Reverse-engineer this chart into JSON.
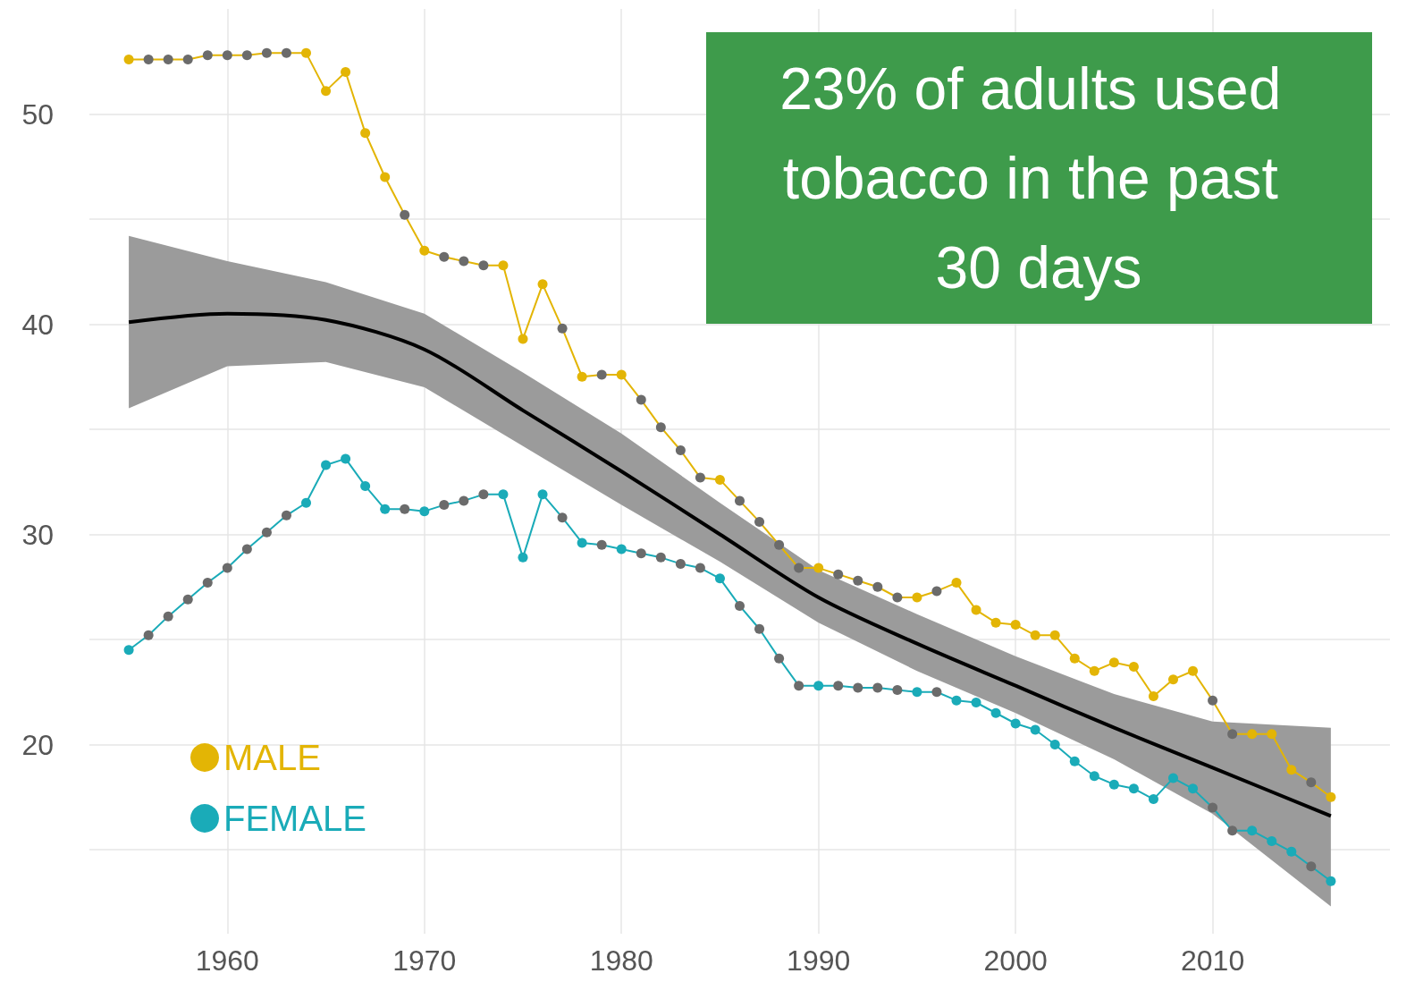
{
  "chart_data": {
    "type": "line",
    "annotations": [
      "23% of adults used tobacco in the past 30 days"
    ],
    "x": [
      1955,
      1956,
      1957,
      1958,
      1959,
      1960,
      1961,
      1962,
      1963,
      1964,
      1965,
      1966,
      1967,
      1968,
      1969,
      1970,
      1971,
      1972,
      1973,
      1974,
      1975,
      1976,
      1977,
      1978,
      1979,
      1980,
      1981,
      1982,
      1983,
      1984,
      1985,
      1986,
      1987,
      1988,
      1989,
      1990,
      1991,
      1992,
      1993,
      1994,
      1995,
      1996,
      1997,
      1998,
      1999,
      2000,
      2001,
      2002,
      2003,
      2004,
      2005,
      2006,
      2007,
      2008,
      2009,
      2010,
      2011,
      2012,
      2013,
      2014,
      2015,
      2016
    ],
    "series": [
      {
        "name": "MALE",
        "color": "#e3b505",
        "values": [
          52.6,
          52.6,
          52.6,
          52.6,
          52.8,
          52.8,
          52.8,
          52.9,
          52.9,
          52.9,
          51.1,
          52.0,
          49.1,
          47.0,
          45.2,
          43.5,
          43.2,
          43.0,
          42.8,
          42.8,
          39.3,
          41.9,
          39.8,
          37.5,
          37.6,
          37.6,
          36.4,
          35.1,
          34.0,
          32.7,
          32.6,
          31.6,
          30.6,
          29.5,
          28.4,
          28.4,
          28.1,
          27.8,
          27.5,
          27.0,
          27.0,
          27.3,
          27.7,
          26.4,
          25.8,
          25.7,
          25.2,
          25.2,
          24.1,
          23.5,
          23.9,
          23.7,
          22.3,
          23.1,
          23.5,
          22.1,
          20.5,
          20.5,
          20.5,
          18.8,
          18.2,
          17.5
        ],
        "colors": [
          "#e3b505",
          "#6b6b6b",
          "#6b6b6b",
          "#6b6b6b",
          "#6b6b6b",
          "#6b6b6b",
          "#6b6b6b",
          "#6b6b6b",
          "#6b6b6b",
          "#e3b505",
          "#e3b505",
          "#e3b505",
          "#e3b505",
          "#e3b505",
          "#6b6b6b",
          "#e3b505",
          "#6b6b6b",
          "#6b6b6b",
          "#6b6b6b",
          "#e3b505",
          "#e3b505",
          "#e3b505",
          "#6b6b6b",
          "#e3b505",
          "#6b6b6b",
          "#e3b505",
          "#6b6b6b",
          "#6b6b6b",
          "#6b6b6b",
          "#6b6b6b",
          "#e3b505",
          "#6b6b6b",
          "#6b6b6b",
          "#6b6b6b",
          "#6b6b6b",
          "#e3b505",
          "#6b6b6b",
          "#6b6b6b",
          "#6b6b6b",
          "#6b6b6b",
          "#e3b505",
          "#6b6b6b",
          "#e3b505",
          "#e3b505",
          "#e3b505",
          "#e3b505",
          "#e3b505",
          "#e3b505",
          "#e3b505",
          "#e3b505",
          "#e3b505",
          "#e3b505",
          "#e3b505",
          "#e3b505",
          "#e3b505",
          "#6b6b6b",
          "#6b6b6b",
          "#e3b505",
          "#e3b505",
          "#e3b505",
          "#6b6b6b",
          "#e3b505"
        ]
      },
      {
        "name": "FEMALE",
        "color": "#1aabb8",
        "values": [
          24.5,
          25.2,
          26.1,
          26.9,
          27.7,
          28.4,
          29.3,
          30.1,
          30.9,
          31.5,
          33.3,
          33.6,
          32.3,
          31.2,
          31.2,
          31.1,
          31.4,
          31.6,
          31.9,
          31.9,
          28.9,
          31.9,
          30.8,
          29.6,
          29.5,
          29.3,
          29.1,
          28.9,
          28.6,
          28.4,
          27.9,
          26.6,
          25.5,
          24.1,
          22.8,
          22.8,
          22.8,
          22.7,
          22.7,
          22.6,
          22.5,
          22.5,
          22.1,
          22.0,
          21.5,
          21.0,
          20.7,
          20.0,
          19.2,
          18.5,
          18.1,
          17.9,
          17.4,
          18.4,
          17.9,
          17.0,
          15.9,
          15.9,
          15.4,
          14.9,
          14.2,
          13.5
        ],
        "colors": [
          "#1aabb8",
          "#6b6b6b",
          "#6b6b6b",
          "#6b6b6b",
          "#6b6b6b",
          "#6b6b6b",
          "#6b6b6b",
          "#6b6b6b",
          "#6b6b6b",
          "#1aabb8",
          "#1aabb8",
          "#1aabb8",
          "#1aabb8",
          "#1aabb8",
          "#6b6b6b",
          "#1aabb8",
          "#6b6b6b",
          "#6b6b6b",
          "#6b6b6b",
          "#1aabb8",
          "#1aabb8",
          "#1aabb8",
          "#6b6b6b",
          "#1aabb8",
          "#6b6b6b",
          "#1aabb8",
          "#6b6b6b",
          "#6b6b6b",
          "#6b6b6b",
          "#6b6b6b",
          "#1aabb8",
          "#6b6b6b",
          "#6b6b6b",
          "#6b6b6b",
          "#6b6b6b",
          "#1aabb8",
          "#6b6b6b",
          "#6b6b6b",
          "#6b6b6b",
          "#6b6b6b",
          "#1aabb8",
          "#6b6b6b",
          "#1aabb8",
          "#1aabb8",
          "#1aabb8",
          "#1aabb8",
          "#1aabb8",
          "#1aabb8",
          "#1aabb8",
          "#1aabb8",
          "#1aabb8",
          "#1aabb8",
          "#1aabb8",
          "#1aabb8",
          "#1aabb8",
          "#6b6b6b",
          "#6b6b6b",
          "#1aabb8",
          "#1aabb8",
          "#1aabb8",
          "#6b6b6b",
          "#1aabb8"
        ]
      },
      {
        "type": "line",
        "color": "#000000",
        "marker": "none",
        "x": [
          1955,
          1960,
          1965,
          1970,
          1975,
          1980,
          1985,
          1990,
          1995,
          2000,
          2005,
          2010,
          2016
        ],
        "values": [
          40.1,
          40.5,
          40.2,
          38.8,
          35.9,
          33.0,
          30.0,
          27.0,
          24.8,
          22.8,
          20.8,
          18.9,
          16.6
        ],
        "lower": [
          36.0,
          38.0,
          38.2,
          37.0,
          34.2,
          31.4,
          28.7,
          25.8,
          23.5,
          21.5,
          19.3,
          16.7,
          12.3
        ],
        "upper": [
          44.2,
          43.0,
          42.0,
          40.5,
          37.7,
          34.8,
          31.5,
          28.3,
          26.2,
          24.2,
          22.4,
          21.1,
          20.8
        ]
      }
    ],
    "marker": "circle",
    "xlim": [
      1953,
      2019
    ],
    "ylim": [
      11,
      55
    ],
    "xticks": [
      1960,
      1970,
      1980,
      1990,
      2000,
      2010
    ],
    "yticks": [
      {
        "value": 15,
        "label": null
      },
      20,
      {
        "value": 25,
        "label": null
      },
      30,
      {
        "value": 35,
        "label": null
      },
      40,
      {
        "value": 45,
        "label": null
      },
      50
    ],
    "grid": true,
    "legend": "bottom left"
  }
}
